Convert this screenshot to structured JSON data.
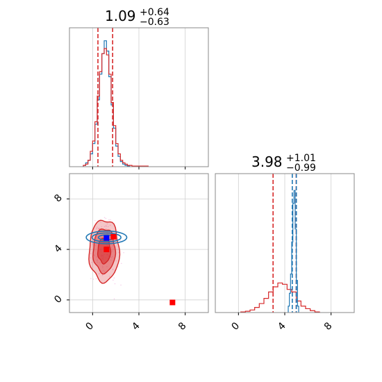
{
  "chart_data": [
    {
      "type": "histogram",
      "panel": "top-left",
      "title": {
        "value": "1.09",
        "plus": "+0.64",
        "minus": "−0.63"
      },
      "xlim": [
        -2,
        10
      ],
      "grid": true,
      "xticks": [
        0,
        4,
        8
      ],
      "series": [
        {
          "color": "#1f77b4",
          "x": [
            -0.7,
            -0.5,
            -0.3,
            -0.1,
            0.1,
            0.3,
            0.5,
            0.7,
            0.9,
            1.1,
            1.3,
            1.5,
            1.7,
            1.9,
            2.1,
            2.3,
            2.5,
            2.7,
            2.9,
            3.1
          ],
          "values": [
            0.01,
            0.03,
            0.05,
            0.1,
            0.18,
            0.33,
            0.52,
            0.72,
            0.88,
            0.98,
            0.9,
            0.7,
            0.48,
            0.3,
            0.16,
            0.08,
            0.04,
            0.02,
            0.01,
            0.005
          ]
        },
        {
          "color": "#d62728",
          "x": [
            -0.7,
            -0.5,
            -0.3,
            -0.1,
            0.1,
            0.3,
            0.5,
            0.7,
            0.9,
            1.1,
            1.3,
            1.5,
            1.7,
            1.9,
            2.1,
            2.3,
            2.5,
            2.7,
            2.9,
            3.1,
            3.3,
            3.5,
            4.1,
            4.7
          ],
          "values": [
            0.01,
            0.02,
            0.05,
            0.12,
            0.2,
            0.35,
            0.55,
            0.74,
            0.88,
            0.92,
            0.87,
            0.72,
            0.5,
            0.32,
            0.18,
            0.1,
            0.05,
            0.03,
            0.02,
            0.01,
            0.01,
            0.005,
            0.005,
            0.005
          ]
        }
      ],
      "quantile_lines": [
        {
          "x": 0.46,
          "color": "#d62728"
        },
        {
          "x": 1.73,
          "color": "#d62728"
        }
      ]
    },
    {
      "type": "scatter",
      "panel": "bottom-left",
      "xlim": [
        -2,
        10
      ],
      "ylim": [
        -1,
        10
      ],
      "grid": true,
      "xticks": [
        0,
        4,
        8
      ],
      "yticks": [
        0,
        4,
        8
      ],
      "red_contours": {
        "color": "#d62728",
        "center": [
          1.0,
          3.9
        ],
        "levels": [
          {
            "rx": 1.3,
            "ry": 2.45,
            "alpha": 0.35
          },
          {
            "rx": 0.95,
            "ry": 1.75,
            "alpha": 0.55
          },
          {
            "rx": 0.55,
            "ry": 1.0,
            "alpha": 0.75
          }
        ]
      },
      "blue_contours": {
        "color": "#1f77b4",
        "center": [
          1.2,
          4.95
        ],
        "levels": [
          {
            "rx": 1.75,
            "ry": 0.5
          },
          {
            "rx": 1.25,
            "ry": 0.35
          },
          {
            "rx": 0.7,
            "ry": 0.2
          }
        ]
      },
      "markers": [
        {
          "x": 1.2,
          "y": 4.9,
          "color": "#0000ff"
        },
        {
          "x": 1.8,
          "y": 5.0,
          "color": "#ff0000"
        },
        {
          "x": 1.2,
          "y": 4.0,
          "color": "#ff0000"
        },
        {
          "x": 6.9,
          "y": -0.2,
          "color": "#ff0000"
        }
      ]
    },
    {
      "type": "histogram",
      "panel": "bottom-right",
      "title": {
        "value": "3.98",
        "plus": "+1.01",
        "minus": "−0.99"
      },
      "xlim": [
        -2,
        10
      ],
      "grid": true,
      "xticks": [
        0,
        4,
        8
      ],
      "series": [
        {
          "color": "#d62728",
          "x": [
            0.4,
            0.8,
            1.2,
            1.6,
            2.0,
            2.4,
            2.8,
            3.2,
            3.6,
            4.0,
            4.4,
            4.8,
            5.2,
            5.6,
            6.0,
            6.4,
            6.8
          ],
          "values": [
            0.005,
            0.01,
            0.02,
            0.04,
            0.07,
            0.11,
            0.16,
            0.2,
            0.23,
            0.22,
            0.18,
            0.16,
            0.09,
            0.05,
            0.03,
            0.015,
            0.005
          ]
        },
        {
          "color": "#1f77b4",
          "x": [
            4.35,
            4.45,
            4.55,
            4.65,
            4.75,
            4.85,
            4.95,
            5.05,
            5.15
          ],
          "values": [
            0.05,
            0.15,
            0.3,
            0.55,
            0.85,
            0.95,
            0.65,
            0.25,
            0.05
          ]
        }
      ],
      "quantile_lines": [
        {
          "x": 2.99,
          "color": "#d62728"
        },
        {
          "x": 4.99,
          "color": "#d62728"
        },
        {
          "x": 4.65,
          "color": "#1f77b4"
        },
        {
          "x": 5.0,
          "color": "#1f77b4"
        }
      ]
    }
  ]
}
